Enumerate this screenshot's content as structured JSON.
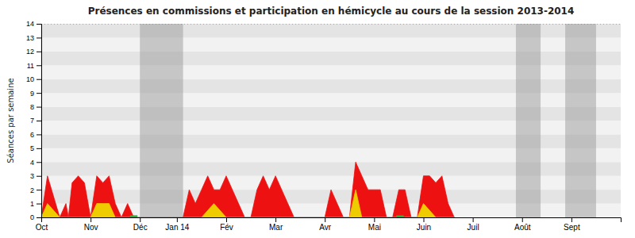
{
  "chart_data": {
    "type": "area",
    "title": "Présences en commissions et participation en hémicycle au cours de la session 2013-2014",
    "y_label": "Séances par semaine",
    "xlim": [
      0,
      47
    ],
    "xticks": [
      {
        "value": 0,
        "label": "Oct"
      },
      {
        "value": 4,
        "label": "Nov"
      },
      {
        "value": 8,
        "label": "Déc"
      },
      {
        "value": 11,
        "label": "Jan 14"
      },
      {
        "value": 15,
        "label": "Fév"
      },
      {
        "value": 19,
        "label": "Mar"
      },
      {
        "value": 23,
        "label": "Avr"
      },
      {
        "value": 27,
        "label": "Mai"
      },
      {
        "value": 31,
        "label": "Juin"
      },
      {
        "value": 35,
        "label": "Juil"
      },
      {
        "value": 39,
        "label": "Août"
      },
      {
        "value": 43,
        "label": "Sept"
      }
    ],
    "ylim": [
      0,
      14
    ],
    "yticks": [
      0,
      1,
      2,
      3,
      4,
      5,
      6,
      7,
      8,
      9,
      10,
      11,
      12,
      13,
      14
    ],
    "grid": true,
    "hline": 14,
    "gray_bands": [
      {
        "x": 8.0,
        "width": 3.5
      },
      {
        "x": 38.5,
        "width": 2.0
      },
      {
        "x": 42.5,
        "width": 2.5
      }
    ],
    "series": [
      {
        "color": "#ee1111",
        "x": [
          0,
          0.5,
          1,
          1.5,
          2,
          2.2,
          2.5,
          3,
          3.5,
          4,
          4.5,
          5,
          5.5,
          6,
          6.5,
          7,
          7.5,
          11.5,
          12,
          12.5,
          13,
          13.5,
          14,
          14.5,
          15,
          15.5,
          16,
          16.5,
          17,
          17.5,
          18,
          18.5,
          19,
          19.5,
          20,
          20.5,
          23,
          23.5,
          24,
          24.5,
          25,
          25.5,
          26,
          26.5,
          27,
          27.5,
          28,
          28.5,
          29,
          29.5,
          30,
          30.5,
          31,
          31.5,
          32,
          32.5,
          33,
          33.5
        ],
        "values": [
          0,
          3,
          1.5,
          0,
          1,
          0,
          2.5,
          3,
          2.5,
          0,
          3,
          2.5,
          3,
          1,
          0,
          1,
          0,
          0,
          2,
          1,
          2,
          3,
          2,
          2,
          3,
          2,
          1,
          0,
          0,
          2,
          3,
          2,
          3,
          2,
          1,
          0,
          0,
          2,
          1,
          0,
          0,
          4,
          3,
          2,
          2,
          2,
          0,
          0,
          2,
          2,
          0,
          0,
          3,
          3,
          2.5,
          3,
          1,
          0
        ]
      },
      {
        "color": "#eecc00",
        "x": [
          0,
          0.5,
          1,
          1.5,
          2,
          2.5,
          3,
          3.5,
          4,
          4.5,
          5,
          5.5,
          6,
          7,
          11.5,
          12,
          13,
          14,
          15,
          16,
          17,
          18,
          19,
          20,
          23,
          24,
          25,
          25.5,
          26,
          27,
          28,
          28.5,
          29,
          30,
          30.5,
          31,
          32,
          33,
          33.5
        ],
        "values": [
          0,
          1,
          0.5,
          0,
          0,
          0,
          0,
          0,
          0,
          1,
          1,
          1,
          0,
          0,
          0,
          0,
          0,
          1,
          0,
          0,
          0,
          0,
          0,
          0,
          0,
          0,
          0,
          2,
          0,
          0,
          0,
          0,
          0,
          0,
          0,
          1,
          0,
          0,
          0
        ]
      }
    ],
    "green_patches": [
      {
        "x": 7.2,
        "width": 0.6,
        "height": 0.15,
        "color": "#33aa33"
      },
      {
        "x": 28.8,
        "width": 0.6,
        "height": 0.15,
        "color": "#33aa33"
      }
    ]
  }
}
